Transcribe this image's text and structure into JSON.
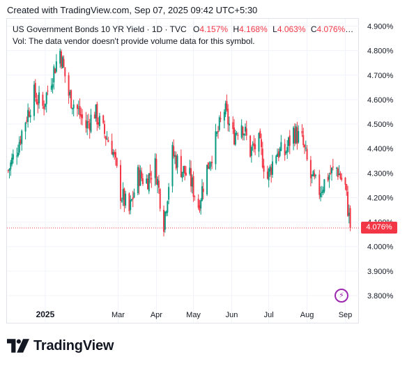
{
  "header": {
    "created_text": "Created with TradingView.com, Sep 07, 2025 09:42 UTC+5:30"
  },
  "legend": {
    "title": "US Government Bonds 10 YR Yield · 1D · TVC",
    "o_label": "O",
    "o_value": "4.157%",
    "h_label": "H",
    "h_value": "4.168%",
    "l_label": "L",
    "l_value": "4.063%",
    "c_label": "C",
    "c_value": "4.076%",
    "ellipsis": "…",
    "volume_note": "Vol: The data vendor doesn't provide volume data for this symbol."
  },
  "last_price": "4.076%",
  "brand": {
    "name": "TradingView"
  },
  "colors": {
    "up": "#089981",
    "down": "#f23645",
    "grid": "#f0f3fa",
    "price_line": "#f23645",
    "flash": "#9c27b0"
  },
  "chart_data": {
    "type": "candlestick",
    "title": "US Government Bonds 10 YR Yield · 1D · TVC",
    "yaxis": {
      "ticks": [
        "4.900%",
        "4.800%",
        "4.700%",
        "4.600%",
        "4.500%",
        "4.400%",
        "4.300%",
        "4.200%",
        "4.100%",
        "4.000%",
        "3.900%",
        "3.800%"
      ],
      "range": [
        3.76,
        4.93
      ]
    },
    "xaxis": {
      "ticks": [
        {
          "label": "2025",
          "date": "2025-01-01",
          "bold": true
        },
        {
          "label": "Mar",
          "date": "2025-03-01"
        },
        {
          "label": "Apr",
          "date": "2025-04-01"
        },
        {
          "label": "May",
          "date": "2025-05-01"
        },
        {
          "label": "Jun",
          "date": "2025-06-01"
        },
        {
          "label": "Jul",
          "date": "2025-07-01"
        },
        {
          "label": "Aug",
          "date": "2025-08-01"
        },
        {
          "label": "Sep",
          "date": "2025-09-01"
        }
      ]
    },
    "grid": true,
    "legend_position": "top-left",
    "last_close": 4.076,
    "series": [
      {
        "date": "2024-12-02",
        "close": 4.31
      },
      {
        "date": "2024-12-09",
        "close": 4.4
      },
      {
        "date": "2024-12-16",
        "close": 4.52
      },
      {
        "date": "2024-12-23",
        "close": 4.62
      },
      {
        "date": "2024-12-30",
        "close": 4.57
      },
      {
        "date": "2025-01-06",
        "close": 4.69
      },
      {
        "date": "2025-01-13",
        "close": 4.8
      },
      {
        "date": "2025-01-20",
        "close": 4.62
      },
      {
        "date": "2025-01-27",
        "close": 4.56
      },
      {
        "date": "2025-02-03",
        "close": 4.49
      },
      {
        "date": "2025-02-10",
        "close": 4.55
      },
      {
        "date": "2025-02-17",
        "close": 4.47
      },
      {
        "date": "2025-02-24",
        "close": 4.41
      },
      {
        "date": "2025-03-03",
        "close": 4.22
      },
      {
        "date": "2025-03-10",
        "close": 4.14
      },
      {
        "date": "2025-03-17",
        "close": 4.29
      },
      {
        "date": "2025-03-24",
        "close": 4.27
      },
      {
        "date": "2025-03-31",
        "close": 4.33
      },
      {
        "date": "2025-04-07",
        "close": 4.1
      },
      {
        "date": "2025-04-14",
        "close": 4.38
      },
      {
        "date": "2025-04-21",
        "close": 4.32
      },
      {
        "date": "2025-04-28",
        "close": 4.28
      },
      {
        "date": "2025-05-05",
        "close": 4.17
      },
      {
        "date": "2025-05-12",
        "close": 4.32
      },
      {
        "date": "2025-05-19",
        "close": 4.43
      },
      {
        "date": "2025-05-26",
        "close": 4.56
      },
      {
        "date": "2025-06-02",
        "close": 4.45
      },
      {
        "date": "2025-06-09",
        "close": 4.51
      },
      {
        "date": "2025-06-16",
        "close": 4.39
      },
      {
        "date": "2025-06-23",
        "close": 4.42
      },
      {
        "date": "2025-06-30",
        "close": 4.28
      },
      {
        "date": "2025-07-07",
        "close": 4.39
      },
      {
        "date": "2025-07-14",
        "close": 4.38
      },
      {
        "date": "2025-07-21",
        "close": 4.47
      },
      {
        "date": "2025-07-28",
        "close": 4.43
      },
      {
        "date": "2025-08-04",
        "close": 4.28
      },
      {
        "date": "2025-08-11",
        "close": 4.23
      },
      {
        "date": "2025-08-18",
        "close": 4.29
      },
      {
        "date": "2025-08-25",
        "close": 4.32
      },
      {
        "date": "2025-09-01",
        "close": 4.24
      },
      {
        "date": "2025-09-05",
        "close": 4.076
      }
    ]
  }
}
